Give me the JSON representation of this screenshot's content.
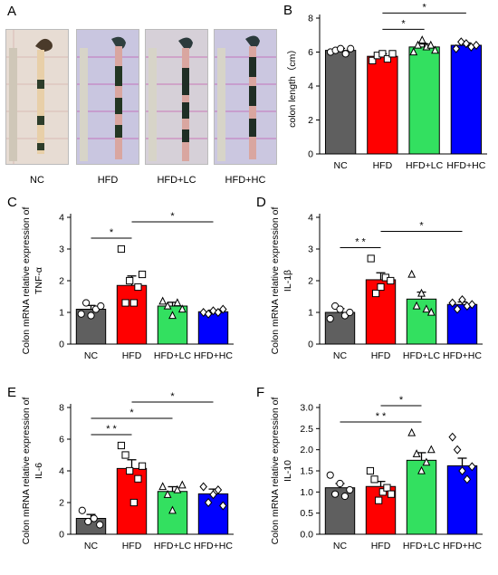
{
  "colors": {
    "NC": "#5f5f5f",
    "HFD": "#ff0000",
    "HFD+LC": "#33e060",
    "HFD+HC": "#0000ff"
  },
  "panel_a": {
    "letter": "A",
    "labels": [
      "NC",
      "HFD",
      "HFD+LC",
      "HFD+HC"
    ]
  },
  "chart_data": [
    {
      "type": "bar",
      "panel": "B",
      "categories": [
        "NC",
        "HFD",
        "HFD+LC",
        "HFD+HC"
      ],
      "values": [
        6.1,
        5.75,
        6.3,
        6.4
      ],
      "errors": [
        0.12,
        0.15,
        0.18,
        0.14
      ],
      "points": [
        [
          6.0,
          6.1,
          6.2,
          5.9,
          6.2
        ],
        [
          5.5,
          5.8,
          5.9,
          5.6,
          5.9
        ],
        [
          6.0,
          6.4,
          6.7,
          6.3,
          6.4,
          6.1
        ],
        [
          6.2,
          6.6,
          6.5,
          6.3,
          6.4
        ]
      ],
      "ylabel": "colon length（cm）",
      "ylim": [
        0,
        8
      ],
      "yticks": [
        0,
        2,
        4,
        6,
        8
      ],
      "sig": [
        {
          "from": 1,
          "to": 2,
          "label": "*"
        },
        {
          "from": 1,
          "to": 3,
          "label": "*"
        }
      ]
    },
    {
      "type": "bar",
      "panel": "C",
      "categories": [
        "NC",
        "HFD",
        "HFD+LC",
        "HFD+HC"
      ],
      "values": [
        1.1,
        1.85,
        1.2,
        1.02
      ],
      "errors": [
        0.12,
        0.3,
        0.12,
        0.05
      ],
      "points": [
        [
          0.95,
          1.3,
          0.9,
          1.1,
          1.2
        ],
        [
          3.0,
          1.3,
          2.0,
          1.3,
          1.8,
          2.2
        ],
        [
          1.35,
          1.2,
          0.9,
          1.3,
          1.1
        ],
        [
          1.0,
          0.95,
          1.05,
          1.0,
          1.1
        ]
      ],
      "ylabel": "Colon mRNA relative expression of TNF-α",
      "ylim": [
        0,
        4
      ],
      "yticks": [
        0,
        1,
        2,
        3,
        4
      ],
      "sig": [
        {
          "from": 0,
          "to": 1,
          "label": "*"
        },
        {
          "from": 1,
          "to": 3,
          "label": "*"
        }
      ]
    },
    {
      "type": "bar",
      "panel": "D",
      "categories": [
        "NC",
        "HFD",
        "HFD+LC",
        "HFD+HC"
      ],
      "values": [
        1.0,
        2.03,
        1.42,
        1.25
      ],
      "errors": [
        0.12,
        0.22,
        0.22,
        0.08
      ],
      "points": [
        [
          0.8,
          1.2,
          1.1,
          0.9,
          1.0
        ],
        [
          2.7,
          1.6,
          1.8,
          2.1,
          2.0
        ],
        [
          2.2,
          1.2,
          1.6,
          1.1,
          1.0
        ],
        [
          1.3,
          1.1,
          1.4,
          1.2,
          1.25
        ]
      ],
      "ylabel": "Colon mRNA relative expression of IL-1β",
      "ylim": [
        0,
        4
      ],
      "yticks": [
        0,
        1,
        2,
        3,
        4
      ],
      "sig": [
        {
          "from": 0,
          "to": 1,
          "label": "* *"
        },
        {
          "from": 1,
          "to": 3,
          "label": "*"
        }
      ]
    },
    {
      "type": "bar",
      "panel": "E",
      "categories": [
        "NC",
        "HFD",
        "HFD+LC",
        "HFD+HC"
      ],
      "values": [
        1.0,
        4.15,
        2.7,
        2.55
      ],
      "errors": [
        0.25,
        0.55,
        0.3,
        0.3
      ],
      "points": [
        [
          1.5,
          0.8,
          1.0,
          0.6
        ],
        [
          5.6,
          5.0,
          4.0,
          2.0,
          3.5,
          4.3
        ],
        [
          3.0,
          2.5,
          1.5,
          2.8,
          3.1
        ],
        [
          3.0,
          2.0,
          2.5,
          2.8,
          1.8
        ]
      ],
      "ylabel": "Colon mRNA relative expression of IL-6",
      "ylim": [
        0,
        8
      ],
      "yticks": [
        0,
        2,
        4,
        6,
        8
      ],
      "sig": [
        {
          "from": 0,
          "to": 1,
          "label": "* *"
        },
        {
          "from": 0,
          "to": 2,
          "label": "*"
        },
        {
          "from": 1,
          "to": 3,
          "label": "*"
        }
      ]
    },
    {
      "type": "bar",
      "panel": "F",
      "categories": [
        "NC",
        "HFD",
        "HFD+LC",
        "HFD+HC"
      ],
      "values": [
        1.1,
        1.13,
        1.75,
        1.62
      ],
      "errors": [
        0.1,
        0.12,
        0.18,
        0.18
      ],
      "points": [
        [
          1.4,
          0.95,
          1.2,
          0.9,
          1.05
        ],
        [
          1.5,
          1.3,
          0.8,
          1.0,
          1.1,
          0.95
        ],
        [
          2.4,
          1.9,
          1.5,
          1.7,
          2.0
        ],
        [
          2.3,
          2.0,
          1.5,
          1.3,
          1.6
        ]
      ],
      "ylabel": "Colon mRNA relative expression of IL-10",
      "ylim": [
        0,
        3.0
      ],
      "yticks": [
        0.0,
        0.5,
        1.0,
        1.5,
        2.0,
        2.5,
        3.0
      ],
      "sig": [
        {
          "from": 0,
          "to": 2,
          "label": "* *"
        },
        {
          "from": 1,
          "to": 2,
          "label": "*"
        }
      ]
    }
  ]
}
